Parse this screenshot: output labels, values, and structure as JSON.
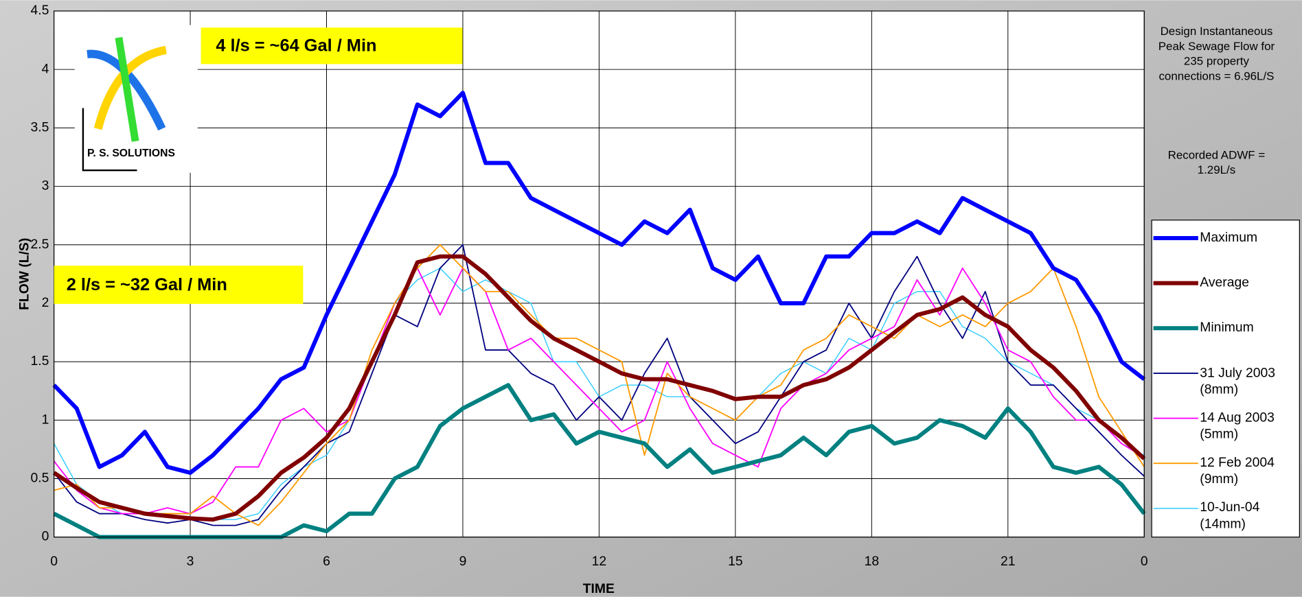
{
  "chart_data": {
    "type": "line",
    "y_label": "FLOW (L/S)",
    "x_label": "TIME",
    "logo_text": "P. S. SOLUTIONS",
    "annotations": [
      "4 l/s = ~64 Gal / Min",
      "2 l/s = ~32 Gal / Min"
    ],
    "notes": [
      "Design Instantaneous Peak Sewage Flow for 235 property connections = 6.96L/S",
      "Recorded ADWF = 1.29L/s"
    ],
    "xlim": [
      0,
      24
    ],
    "xticks": [
      0,
      3,
      6,
      9,
      12,
      15,
      18,
      21,
      {
        "value": 24,
        "label": "0"
      }
    ],
    "ylim": [
      0,
      4.5
    ],
    "yticks": [
      0,
      0.5,
      1,
      1.5,
      2,
      2.5,
      3,
      3.5,
      4,
      4.5
    ],
    "grid": true,
    "legend": "right",
    "x": [
      0,
      0.5,
      1,
      1.5,
      2,
      2.5,
      3,
      3.5,
      4,
      4.5,
      5,
      5.5,
      6,
      6.5,
      7,
      7.5,
      8,
      8.5,
      9,
      9.5,
      10,
      10.5,
      11,
      11.5,
      12,
      12.5,
      13,
      13.5,
      14,
      14.5,
      15,
      15.5,
      16,
      16.5,
      17,
      17.5,
      18,
      18.5,
      19,
      19.5,
      20,
      20.5,
      21,
      21.5,
      22,
      22.5,
      23,
      23.5,
      24
    ],
    "series": [
      {
        "name": "Maximum",
        "color": "#0000ff",
        "width": 5,
        "values": [
          1.3,
          1.1,
          0.6,
          0.7,
          0.9,
          0.6,
          0.55,
          0.7,
          0.9,
          1.1,
          1.35,
          1.45,
          1.9,
          2.3,
          2.7,
          3.1,
          3.7,
          3.6,
          3.8,
          3.2,
          3.2,
          2.9,
          2.8,
          2.7,
          2.6,
          2.5,
          2.7,
          2.6,
          2.8,
          2.3,
          2.2,
          2.4,
          2.0,
          2.0,
          2.4,
          2.4,
          2.6,
          2.6,
          2.7,
          2.6,
          2.9,
          2.8,
          2.7,
          2.6,
          2.3,
          2.2,
          1.9,
          1.5,
          1.35
        ]
      },
      {
        "name": "Average",
        "color": "#800000",
        "width": 5,
        "values": [
          0.55,
          0.42,
          0.3,
          0.25,
          0.2,
          0.18,
          0.16,
          0.15,
          0.2,
          0.35,
          0.55,
          0.68,
          0.85,
          1.1,
          1.5,
          1.9,
          2.35,
          2.4,
          2.4,
          2.25,
          2.05,
          1.85,
          1.7,
          1.6,
          1.5,
          1.4,
          1.35,
          1.35,
          1.3,
          1.25,
          1.18,
          1.2,
          1.2,
          1.3,
          1.35,
          1.45,
          1.6,
          1.75,
          1.9,
          1.95,
          2.05,
          1.9,
          1.8,
          1.6,
          1.45,
          1.25,
          1.0,
          0.85,
          0.67
        ]
      },
      {
        "name": "Minimum",
        "color": "#008080",
        "width": 5,
        "values": [
          0.2,
          0.1,
          0,
          0,
          0,
          0,
          0,
          0,
          0,
          0,
          0,
          0.1,
          0.05,
          0.2,
          0.2,
          0.5,
          0.6,
          0.95,
          1.1,
          1.2,
          1.3,
          1.0,
          1.05,
          0.8,
          0.9,
          0.85,
          0.8,
          0.6,
          0.75,
          0.55,
          0.6,
          0.65,
          0.7,
          0.85,
          0.7,
          0.9,
          0.95,
          0.8,
          0.85,
          1.0,
          0.95,
          0.85,
          1.1,
          0.9,
          0.6,
          0.55,
          0.6,
          0.45,
          0.2
        ]
      },
      {
        "name": "31 July 2003 (8mm)",
        "color": "#000080",
        "width": 1.5,
        "values": [
          0.55,
          0.3,
          0.2,
          0.2,
          0.15,
          0.12,
          0.15,
          0.1,
          0.1,
          0.15,
          0.4,
          0.6,
          0.8,
          0.9,
          1.4,
          1.9,
          1.8,
          2.3,
          2.5,
          1.6,
          1.6,
          1.4,
          1.3,
          1.0,
          1.2,
          1.0,
          1.4,
          1.7,
          1.2,
          1.0,
          0.8,
          0.9,
          1.2,
          1.5,
          1.6,
          2.0,
          1.7,
          2.1,
          2.4,
          2.0,
          1.7,
          2.1,
          1.5,
          1.3,
          1.3,
          1.1,
          0.9,
          0.7,
          0.52
        ]
      },
      {
        "name": "14 Aug 2003 (5mm)",
        "color": "#ff00ff",
        "width": 1.5,
        "values": [
          0.65,
          0.4,
          0.25,
          0.2,
          0.2,
          0.25,
          0.2,
          0.3,
          0.6,
          0.6,
          1.0,
          1.1,
          0.9,
          1.0,
          1.5,
          2.0,
          2.3,
          1.9,
          2.3,
          2.1,
          1.6,
          1.7,
          1.5,
          1.3,
          1.1,
          0.9,
          1.0,
          1.5,
          1.1,
          0.8,
          0.7,
          0.6,
          1.1,
          1.3,
          1.4,
          1.6,
          1.7,
          1.8,
          2.2,
          1.9,
          2.3,
          2.0,
          1.6,
          1.5,
          1.2,
          1.0,
          1.0,
          0.8,
          0.68
        ]
      },
      {
        "name": "12 Feb 2004 (9mm)",
        "color": "#ff9900",
        "width": 1.5,
        "values": [
          0.4,
          0.45,
          0.25,
          0.25,
          0.2,
          0.2,
          0.2,
          0.35,
          0.2,
          0.1,
          0.3,
          0.55,
          0.8,
          1.0,
          1.6,
          2.0,
          2.3,
          2.5,
          2.3,
          2.1,
          2.1,
          1.9,
          1.7,
          1.7,
          1.6,
          1.5,
          0.7,
          1.4,
          1.2,
          1.1,
          1.0,
          1.2,
          1.3,
          1.6,
          1.7,
          1.9,
          1.8,
          1.7,
          1.9,
          1.8,
          1.9,
          1.8,
          2.0,
          2.1,
          2.3,
          1.8,
          1.2,
          0.9,
          0.6
        ]
      },
      {
        "name": "10-Jun-04 (14mm)",
        "color": "#33ccff",
        "width": 1.2,
        "values": [
          0.8,
          0.45,
          0.3,
          0.2,
          0.2,
          0.2,
          0.15,
          0.15,
          0.15,
          0.2,
          0.45,
          0.6,
          0.7,
          1.0,
          1.5,
          2.0,
          2.2,
          2.3,
          2.1,
          2.2,
          2.1,
          2.0,
          1.5,
          1.5,
          1.2,
          1.3,
          1.3,
          1.2,
          1.2,
          1.1,
          1.0,
          1.2,
          1.4,
          1.5,
          1.4,
          1.7,
          1.6,
          2.0,
          2.1,
          2.1,
          1.8,
          1.7,
          1.5,
          1.4,
          1.3,
          1.1,
          1.0,
          0.8,
          0.7
        ]
      }
    ]
  }
}
